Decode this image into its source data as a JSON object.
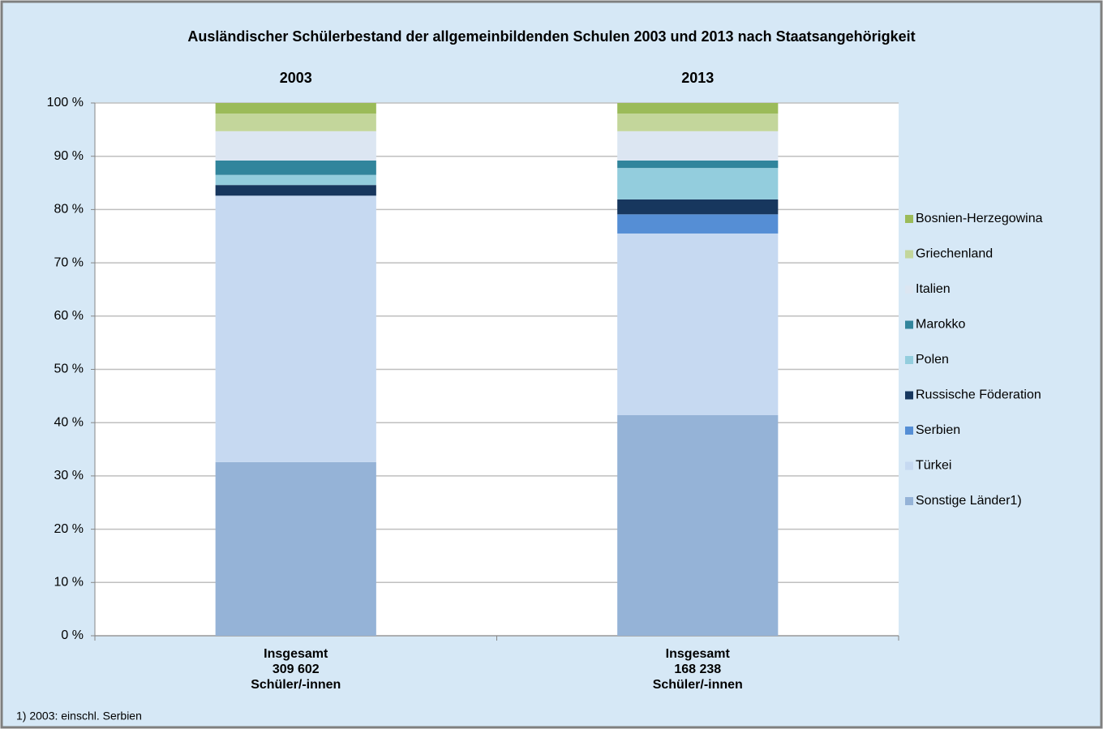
{
  "chart_data": {
    "type": "stacked_bar",
    "title": "Ausländischer Schülerbestand der allgemeinbildenden Schulen 2003 und 2013 nach Staatsangehörigkeit",
    "column_titles": [
      "2003",
      "2013"
    ],
    "categories": [
      [
        "Insgesamt",
        "309 602",
        "Schüler/-innen"
      ],
      [
        "Insgesamt",
        "168 238",
        "Schüler/-innen"
      ]
    ],
    "series": [
      {
        "name": "Sonstige Länder1)",
        "color": "#95b3d7",
        "values": [
          32.6,
          41.4
        ]
      },
      {
        "name": "Türkei",
        "color": "#c6d9f1",
        "values": [
          50.0,
          34.1
        ]
      },
      {
        "name": "Serbien",
        "color": "#558ed5",
        "values": [
          0,
          3.6
        ]
      },
      {
        "name": "Russische Föderation",
        "color": "#17375e",
        "values": [
          2.0,
          2.8
        ]
      },
      {
        "name": "Polen",
        "color": "#93cddd",
        "values": [
          1.9,
          5.9
        ]
      },
      {
        "name": "Marokko",
        "color": "#31859c",
        "values": [
          2.7,
          1.4
        ]
      },
      {
        "name": "Italien",
        "color": "#dce6f2",
        "values": [
          5.5,
          5.5
        ]
      },
      {
        "name": "Griechenland",
        "color": "#c3d69b",
        "values": [
          3.3,
          3.3
        ]
      },
      {
        "name": "Bosnien-Herzegowina",
        "color": "#9bbb59",
        "values": [
          2.0,
          2.0
        ]
      }
    ],
    "ylim": [
      0,
      100
    ],
    "yticks": [
      {
        "value": 0,
        "label": "0 %"
      },
      {
        "value": 10,
        "label": "10 %"
      },
      {
        "value": 20,
        "label": "20 %"
      },
      {
        "value": 30,
        "label": "30 %"
      },
      {
        "value": 40,
        "label": "40 %"
      },
      {
        "value": 50,
        "label": "50 %"
      },
      {
        "value": 60,
        "label": "60 %"
      },
      {
        "value": 70,
        "label": "70 %"
      },
      {
        "value": 80,
        "label": "80 %"
      },
      {
        "value": 90,
        "label": "90 %"
      },
      {
        "value": 100,
        "label": "100 %"
      }
    ],
    "grid": true,
    "legend": "right",
    "footnote": "1) 2003: einschl. Serbien"
  }
}
